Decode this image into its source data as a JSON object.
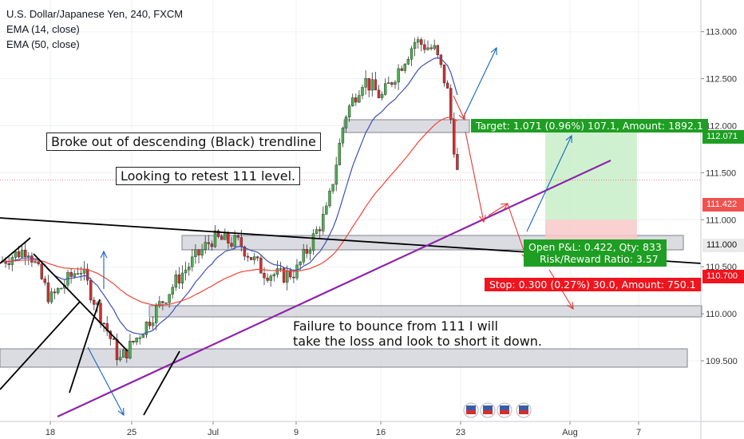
{
  "legend": {
    "symbol_line": "U.S. Dollar/Japanese Yen, 240, FXCM",
    "ema14": "EMA (14, close)",
    "ema50": "EMA (50, close)"
  },
  "annotations": {
    "breakout": "Broke out of descending (Black) trendline",
    "retest": "Looking to retest 111 level.",
    "failure_line1": "Failure to bounce from 111 I will",
    "failure_line2": "take the loss and look to short it down."
  },
  "position": {
    "target": "Target: 1.071 (0.96%) 107.1, Amount: 1892.1",
    "pnl": "Open P&L: 0.422, Qty: 833",
    "rr": "Risk/Reward Ratio: 3.57",
    "stop": "Stop: 0.300 (0.27%) 30.0, Amount: 750.1"
  },
  "price_labels": {
    "target": "112.071",
    "last": "111.422",
    "entry": "111.000",
    "stop": "110.700"
  },
  "colors": {
    "up_candle": "#4caf50",
    "down_candle": "#d32f2f",
    "ema14": "#3f51b5",
    "ema50": "#f44336",
    "trendline_black": "#000000",
    "trendline_purple": "#8e24aa",
    "target_green": "#1e9e22",
    "stop_red": "#f0141e",
    "last_price": "#ef5350",
    "arrow_blue": "#1565c0",
    "arrow_red": "#e53935"
  },
  "chart_data": {
    "type": "candlestick",
    "title": "U.S. Dollar/Japanese Yen, 240, FXCM",
    "y_ticks": [
      "113.000",
      "112.500",
      "112.000",
      "111.500",
      "111.000",
      "110.500",
      "110.000",
      "109.500"
    ],
    "ylim": [
      109.25,
      113.25
    ],
    "x_ticks": [
      "18",
      "25",
      "Jul",
      "9",
      "16",
      "23",
      "Aug",
      "7"
    ],
    "series": [
      {
        "name": "EMA (14, close)"
      },
      {
        "name": "EMA (50, close)"
      }
    ],
    "approx_close_path": [
      {
        "x": "2018-06-14",
        "y": 110.55
      },
      {
        "x": "2018-06-16",
        "y": 110.7
      },
      {
        "x": "2018-06-18",
        "y": 110.15
      },
      {
        "x": "2018-06-20",
        "y": 110.5
      },
      {
        "x": "2018-06-22",
        "y": 109.95
      },
      {
        "x": "2018-06-24",
        "y": 109.5
      },
      {
        "x": "2018-06-26",
        "y": 109.85
      },
      {
        "x": "2018-06-28",
        "y": 110.4
      },
      {
        "x": "2018-07-01",
        "y": 110.8
      },
      {
        "x": "2018-07-03",
        "y": 110.75
      },
      {
        "x": "2018-07-05",
        "y": 110.45
      },
      {
        "x": "2018-07-07",
        "y": 110.4
      },
      {
        "x": "2018-07-09",
        "y": 110.45
      },
      {
        "x": "2018-07-11",
        "y": 111.1
      },
      {
        "x": "2018-07-12",
        "y": 112.1
      },
      {
        "x": "2018-07-14",
        "y": 112.5
      },
      {
        "x": "2018-07-16",
        "y": 112.3
      },
      {
        "x": "2018-07-18",
        "y": 112.9
      },
      {
        "x": "2018-07-20",
        "y": 112.8
      },
      {
        "x": "2018-07-21",
        "y": 112.4
      },
      {
        "x": "2018-07-23",
        "y": 111.42
      }
    ],
    "levels": {
      "target": 112.071,
      "last": 111.422,
      "entry": 111.0,
      "stop": 110.7
    }
  }
}
